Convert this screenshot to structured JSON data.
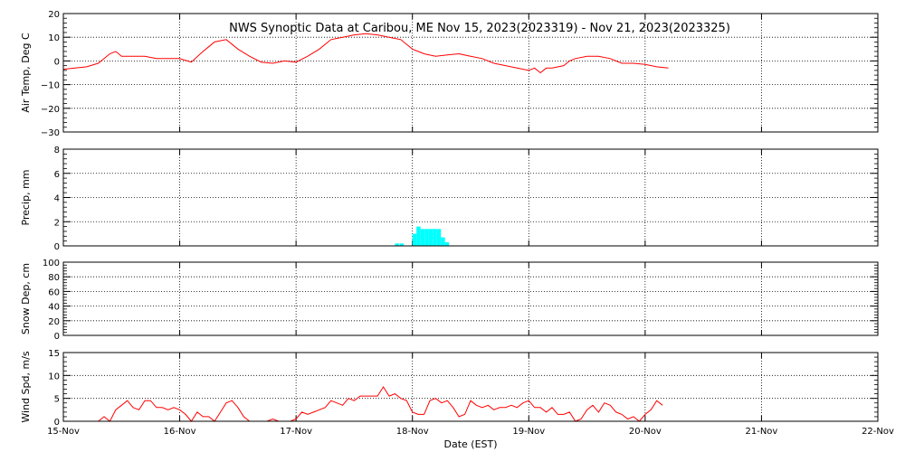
{
  "chart_data": {
    "title": "NWS Synoptic Data at Caribou, ME   Nov 15, 2023(2023319) - Nov 21, 2023(2023325)",
    "xlabel": "Date (EST)",
    "x_unit": "days since Nov 15, 2023 00:00 EST",
    "x_ticks": [
      "15-Nov",
      "16-Nov",
      "17-Nov",
      "18-Nov",
      "19-Nov",
      "20-Nov",
      "21-Nov",
      "22-Nov"
    ],
    "grid": true,
    "panels": [
      {
        "id": "air-temp",
        "type": "line",
        "ylabel": "Air Temp, Deg C",
        "ylim": [
          -30,
          20
        ],
        "yticks": [
          "20",
          "10",
          "0",
          "−10",
          "−20",
          "−30"
        ],
        "ytick_values": [
          20,
          10,
          0,
          -10,
          -20,
          -30
        ],
        "color": "#ff0000",
        "x": [
          0.0,
          0.1,
          0.2,
          0.3,
          0.4,
          0.45,
          0.5,
          0.55,
          0.6,
          0.7,
          0.8,
          0.9,
          1.0,
          1.1,
          1.2,
          1.25,
          1.3,
          1.4,
          1.5,
          1.6,
          1.7,
          1.8,
          1.9,
          2.0,
          2.1,
          2.2,
          2.3,
          2.4,
          2.5,
          2.6,
          2.7,
          2.8,
          2.9,
          3.0,
          3.05,
          3.1,
          3.2,
          3.3,
          3.4,
          3.5,
          3.6,
          3.7,
          3.8,
          3.9,
          4.0,
          4.05,
          4.1,
          4.15,
          4.2,
          4.3,
          4.35,
          4.4,
          4.5,
          4.6,
          4.7,
          4.8,
          4.9,
          5.0,
          5.1,
          5.2
        ],
        "values": [
          -3.5,
          -3,
          -2.5,
          -1,
          3,
          4,
          2,
          2,
          2,
          2,
          1,
          1,
          1,
          -0.5,
          4,
          6,
          8,
          9,
          5,
          2,
          -0.5,
          -1,
          0,
          -0.5,
          2,
          5,
          9,
          10,
          11,
          11.5,
          11,
          10,
          9,
          5,
          4,
          3,
          2,
          2.5,
          3,
          2,
          1,
          -1,
          -2,
          -3,
          -4,
          -3,
          -5,
          -3,
          -3,
          -2,
          0,
          1,
          2,
          2,
          1,
          -1,
          -1,
          -1.5,
          -2.5,
          -3
        ]
      },
      {
        "id": "precip",
        "type": "bar",
        "ylabel": "Precip, mm",
        "ylim": [
          0,
          8
        ],
        "yticks": [
          "8",
          "6",
          "4",
          "2",
          "0"
        ],
        "ytick_values": [
          8,
          6,
          4,
          2,
          0
        ],
        "color": "#00ffff",
        "bar_width_days": 0.035,
        "x": [
          2.85,
          2.89,
          3.0,
          3.035,
          3.07,
          3.105,
          3.14,
          3.175,
          3.21,
          3.245,
          3.28
        ],
        "values": [
          0.2,
          0.2,
          1.0,
          1.6,
          1.4,
          1.4,
          1.4,
          1.4,
          1.4,
          0.7,
          0.3
        ]
      },
      {
        "id": "snow-depth",
        "type": "line",
        "ylabel": "Snow Dep, cm",
        "ylim": [
          0,
          100
        ],
        "yticks": [
          "100",
          "80",
          "60",
          "40",
          "20",
          "0"
        ],
        "ytick_values": [
          100,
          80,
          60,
          40,
          20,
          0
        ],
        "color": "#ff0000",
        "x": [],
        "values": []
      },
      {
        "id": "wind-speed",
        "type": "line",
        "ylabel": "Wind Spd, m/s",
        "ylim": [
          0,
          15
        ],
        "yticks": [
          "15",
          "10",
          "5",
          "0"
        ],
        "ytick_values": [
          15,
          10,
          5,
          0
        ],
        "color": "#ff0000",
        "x": [
          0.3,
          0.35,
          0.4,
          0.45,
          0.5,
          0.55,
          0.6,
          0.65,
          0.7,
          0.75,
          0.8,
          0.85,
          0.9,
          0.95,
          1.0,
          1.05,
          1.1,
          1.15,
          1.2,
          1.25,
          1.3,
          1.35,
          1.4,
          1.45,
          1.5,
          1.55,
          1.6,
          1.65,
          1.7,
          1.75,
          1.8,
          1.85,
          1.9,
          1.95,
          2.0,
          2.05,
          2.1,
          2.15,
          2.2,
          2.25,
          2.3,
          2.35,
          2.4,
          2.45,
          2.5,
          2.55,
          2.6,
          2.65,
          2.7,
          2.75,
          2.8,
          2.85,
          2.9,
          2.95,
          3.0,
          3.05,
          3.1,
          3.15,
          3.2,
          3.25,
          3.3,
          3.35,
          3.4,
          3.45,
          3.5,
          3.55,
          3.6,
          3.65,
          3.7,
          3.75,
          3.8,
          3.85,
          3.9,
          3.95,
          4.0,
          4.05,
          4.1,
          4.15,
          4.2,
          4.25,
          4.3,
          4.35,
          4.4,
          4.45,
          4.5,
          4.55,
          4.6,
          4.65,
          4.7,
          4.75,
          4.8,
          4.85,
          4.9,
          4.95,
          5.0,
          5.05,
          5.1,
          5.15
        ],
        "values": [
          0,
          1,
          0,
          2.5,
          3.5,
          4.5,
          3,
          2.5,
          4.5,
          4.5,
          3,
          3,
          2.5,
          3,
          2.5,
          1.5,
          0,
          2,
          1,
          1,
          0,
          2,
          4,
          4.5,
          3,
          1,
          0,
          0,
          0,
          0,
          0.5,
          0,
          0,
          0,
          0.5,
          2,
          1.5,
          2,
          2.5,
          3,
          4.5,
          4,
          3.5,
          5,
          4.5,
          5.5,
          5.5,
          5.5,
          5.5,
          7.5,
          5.5,
          6,
          5,
          4.5,
          2,
          1.5,
          1.5,
          4.5,
          5,
          4,
          4.5,
          3,
          1,
          1.5,
          4.5,
          3.5,
          3,
          3.5,
          2.5,
          3,
          3,
          3.5,
          3,
          4,
          4.5,
          3,
          3,
          2,
          3,
          1.5,
          1.5,
          2,
          0,
          0.5,
          2.5,
          3.5,
          2,
          4,
          3.5,
          2,
          1.5,
          0.5,
          1,
          0,
          1.5,
          2.5,
          4.5,
          3.5
        ]
      }
    ]
  }
}
